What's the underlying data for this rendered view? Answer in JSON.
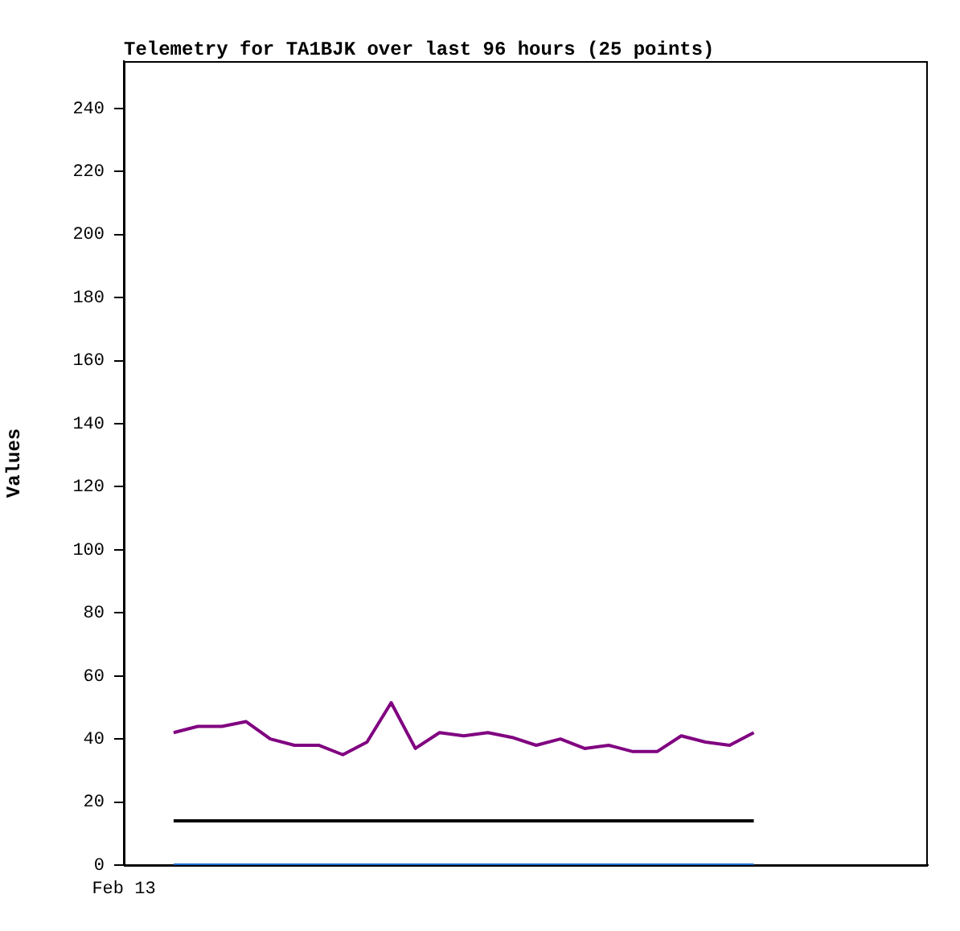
{
  "chart_data": {
    "type": "line",
    "title": "Telemetry for TA1BJK over last 96 hours (25 points)",
    "ylabel": "Values",
    "categories": [
      null,
      null,
      null,
      null,
      null,
      null,
      null,
      null,
      null,
      null,
      null,
      null,
      null,
      null,
      null,
      null,
      null,
      null,
      null,
      null,
      null,
      null,
      null,
      null,
      null
    ],
    "annotations": [
      "Feb 13"
    ],
    "ylim": [
      0,
      255
    ],
    "yticks": [
      0,
      20,
      40,
      60,
      80,
      100,
      120,
      140,
      160,
      180,
      200,
      220,
      240
    ],
    "grid": false,
    "legend": false,
    "marker": "none",
    "line_style": "solid",
    "series": [
      {
        "color": "#800080",
        "values": [
          42,
          44,
          44,
          45.5,
          40,
          38,
          38,
          35,
          39,
          51.5,
          37,
          42,
          41,
          42,
          40.5,
          38,
          40,
          37,
          38,
          36,
          36,
          41,
          39,
          38,
          42
        ]
      },
      {
        "color": "#000000",
        "values": [
          14,
          14,
          14,
          14,
          14,
          14,
          14,
          14,
          14,
          14,
          14,
          14,
          14,
          14,
          14,
          14,
          14,
          14,
          14,
          14,
          14,
          14,
          14,
          14,
          14
        ]
      },
      {
        "color": "#1a6fcf",
        "values": [
          0,
          0,
          0,
          0,
          0,
          0,
          0,
          0,
          0,
          0,
          0,
          0,
          0,
          0,
          0,
          0,
          0,
          0,
          0,
          0,
          0,
          0,
          0,
          0,
          0
        ]
      }
    ]
  }
}
